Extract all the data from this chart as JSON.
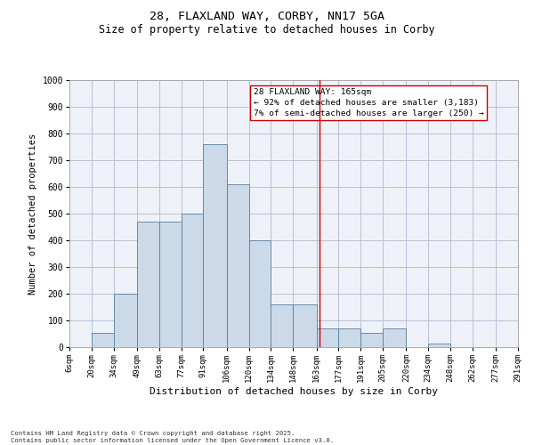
{
  "title_line1": "28, FLAXLAND WAY, CORBY, NN17 5GA",
  "title_line2": "Size of property relative to detached houses in Corby",
  "xlabel": "Distribution of detached houses by size in Corby",
  "ylabel": "Number of detached properties",
  "footnote": "Contains HM Land Registry data © Crown copyright and database right 2025.\nContains public sector information licensed under the Open Government Licence v3.0.",
  "annotation_title": "28 FLAXLAND WAY: 165sqm",
  "annotation_line2": "← 92% of detached houses are smaller (3,183)",
  "annotation_line3": "7% of semi-detached houses are larger (250) →",
  "bar_edges": [
    6,
    20,
    34,
    49,
    63,
    77,
    91,
    106,
    120,
    134,
    148,
    163,
    177,
    191,
    205,
    220,
    234,
    248,
    262,
    277,
    291
  ],
  "bar_heights": [
    0,
    55,
    200,
    470,
    470,
    500,
    760,
    610,
    400,
    160,
    160,
    70,
    70,
    55,
    70,
    0,
    15,
    0,
    0,
    0
  ],
  "vline_x": 165,
  "ylim": [
    0,
    1000
  ],
  "bar_facecolor": "#ccd9e8",
  "bar_edgecolor": "#5580a0",
  "vline_color": "#cc0000",
  "grid_color": "#b0b8d0",
  "bg_color": "#eef2f8",
  "annotation_box_edgecolor": "#cc0000",
  "annotation_box_facecolor": "#ffffff",
  "fig_width": 6.0,
  "fig_height": 5.0,
  "dpi": 100
}
